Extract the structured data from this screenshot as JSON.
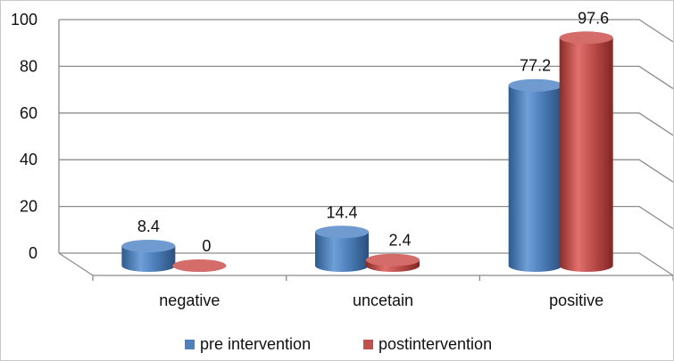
{
  "chart_data": {
    "type": "bar",
    "categories": [
      "negative",
      "uncetain",
      "positive"
    ],
    "series": [
      {
        "name": "pre intervention",
        "values": [
          8.4,
          14.4,
          77.2
        ],
        "labels": [
          "8.4",
          "14.4",
          "77.2"
        ],
        "color": "#4F81BD"
      },
      {
        "name": "postintervention",
        "values": [
          0,
          2.4,
          97.6
        ],
        "labels": [
          "0",
          "2.4",
          "97.6"
        ],
        "color": "#C0504D"
      }
    ],
    "ylim": [
      0,
      100
    ],
    "yticks": [
      "0",
      "20",
      "40",
      "60",
      "80",
      "100"
    ],
    "title": "",
    "xlabel": "",
    "ylabel": "",
    "grid": true,
    "legend": "bottom",
    "style": "3d-cylinder"
  }
}
